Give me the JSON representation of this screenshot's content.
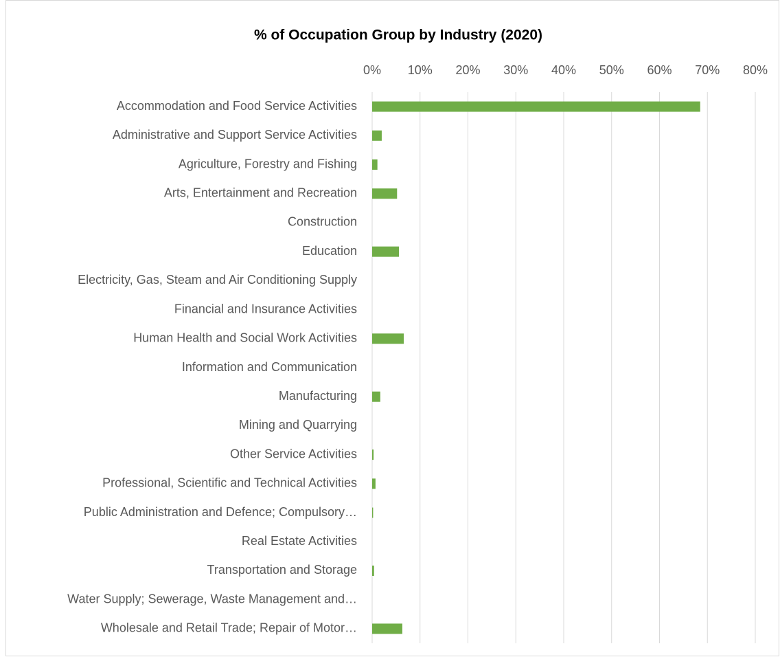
{
  "chart_data": {
    "type": "barh",
    "title": "% of Occupation Group by Industry (2020)",
    "categories": [
      "Accommodation and Food Service Activities",
      "Administrative and Support Service Activities",
      "Agriculture, Forestry and Fishing",
      "Arts, Entertainment and Recreation",
      "Construction",
      "Education",
      "Electricity, Gas, Steam and Air Conditioning Supply",
      "Financial and Insurance Activities",
      "Human Health and Social Work Activities",
      "Information and Communication",
      "Manufacturing",
      "Mining and Quarrying",
      "Other Service Activities",
      "Professional, Scientific and Technical Activities",
      "Public Administration and Defence; Compulsory…",
      "Real Estate Activities",
      "Transportation and Storage",
      "Water Supply; Sewerage, Waste Management and…",
      "Wholesale and Retail Trade; Repair of Motor…"
    ],
    "values": [
      68.5,
      2.0,
      1.1,
      5.2,
      0,
      5.6,
      0,
      0,
      6.6,
      0,
      1.7,
      0,
      0.3,
      0.7,
      0.2,
      0,
      0.4,
      0,
      6.3
    ],
    "color": "#70ad47",
    "xlim": [
      0,
      80
    ],
    "xticks": [
      {
        "value": 0,
        "label": "0%"
      },
      {
        "value": 10,
        "label": "10%"
      },
      {
        "value": 20,
        "label": "20%"
      },
      {
        "value": 30,
        "label": "30%"
      },
      {
        "value": 40,
        "label": "40%"
      },
      {
        "value": 50,
        "label": "50%"
      },
      {
        "value": 60,
        "label": "60%"
      },
      {
        "value": 70,
        "label": "70%"
      },
      {
        "value": 80,
        "label": "80%"
      }
    ],
    "grid": true
  }
}
